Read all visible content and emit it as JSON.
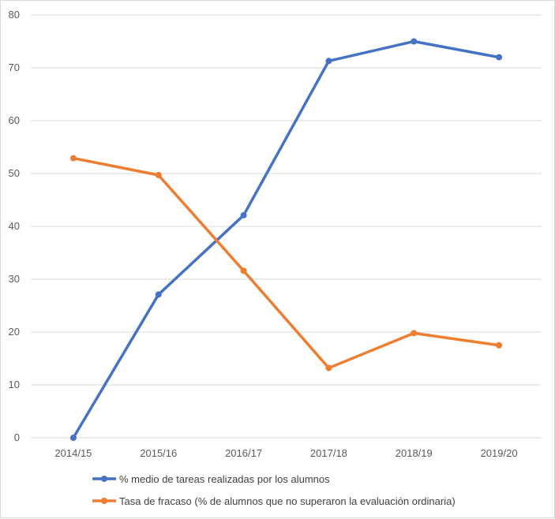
{
  "chart_data": {
    "type": "line",
    "title": "",
    "xlabel": "",
    "ylabel": "",
    "categories": [
      "2014/15",
      "2015/16",
      "2016/17",
      "2017/18",
      "2018/19",
      "2019/20"
    ],
    "ylim": [
      0,
      80
    ],
    "yticks": [
      0,
      10,
      20,
      30,
      40,
      50,
      60,
      70,
      80
    ],
    "grid": true,
    "legend_position": "bottom-left",
    "series": [
      {
        "name": "% medio de tareas realizadas por los alumnos",
        "color": "#4472c4",
        "values": [
          0,
          27.1,
          42.1,
          71.3,
          75.0,
          72.0
        ]
      },
      {
        "name": "Tasa de fracaso (% de alumnos que no superaron la evaluación ordinaria)",
        "color": "#ed7d31",
        "values": [
          52.9,
          49.7,
          31.6,
          13.2,
          19.8,
          17.5
        ]
      }
    ]
  }
}
